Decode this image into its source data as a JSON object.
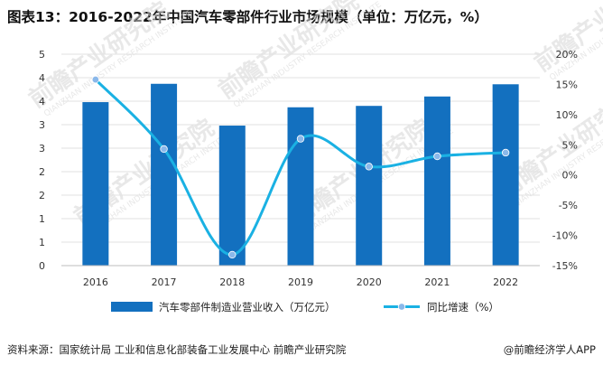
{
  "chart_data": {
    "type": "bar+line",
    "title": "图表13：2016-2022年中国汽车零部件行业市场规模（单位：万亿元，%）",
    "categories": [
      "2016",
      "2017",
      "2018",
      "2019",
      "2020",
      "2021",
      "2022"
    ],
    "left_axis": {
      "range": [
        0,
        4.5
      ],
      "ticks": [
        0,
        0.5,
        1,
        1.5,
        2,
        2.5,
        3,
        3.5,
        4,
        4.5
      ],
      "tick_labels": [
        "0",
        "1",
        "1",
        "2",
        "2",
        "3",
        "3",
        "4",
        "4",
        "5"
      ]
    },
    "right_axis": {
      "range": [
        -15,
        20
      ],
      "ticks": [
        -15,
        -10,
        -5,
        0,
        5,
        10,
        15,
        20
      ],
      "tick_labels": [
        "-15%",
        "-10%",
        "-5%",
        "0%",
        "5%",
        "10%",
        "15%",
        "20%"
      ]
    },
    "series": [
      {
        "name": "汽车零部件制造业营业收入（万亿元）",
        "type": "bar",
        "axis": "left",
        "color": "#1370bf",
        "values": [
          3.48,
          3.87,
          2.98,
          3.37,
          3.4,
          3.6,
          3.86
        ]
      },
      {
        "name": "同比增速（%）",
        "type": "line",
        "axis": "right",
        "color": "#1ab1e3",
        "marker_color": "#8ab8ea",
        "values": [
          15.8,
          4.3,
          -13.2,
          6.0,
          1.4,
          3.1,
          3.7
        ]
      }
    ],
    "legend_position": "bottom"
  },
  "watermark": {
    "text": "前瞻产业研究院",
    "subtext": "QIANZHAN INDUSTRY RESEARCH INSTITUTE"
  },
  "footer": {
    "source": "资料来源：国家统计局 工业和信息化部装备工业发展中心 前瞻产业研究院",
    "brand": "@前瞻经济学人APP"
  }
}
